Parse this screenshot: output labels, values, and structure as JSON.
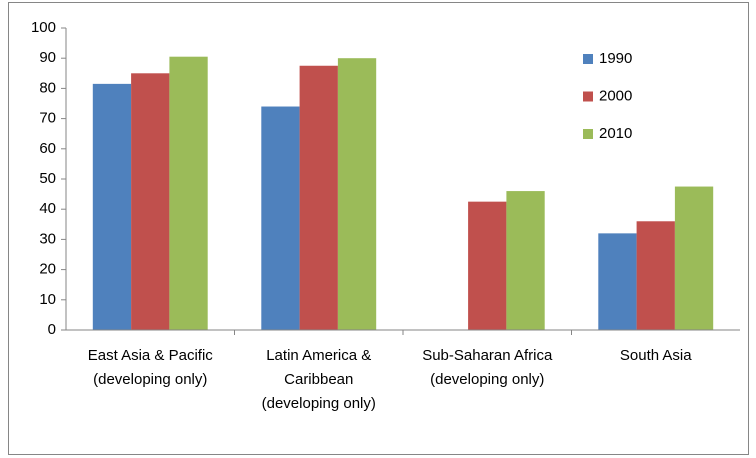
{
  "chart_data": {
    "type": "bar",
    "categories": [
      [
        "East Asia & Pacific",
        "(developing only)"
      ],
      [
        "Latin America &",
        "Caribbean",
        "(developing only)"
      ],
      [
        "Sub-Saharan Africa",
        "(developing only)"
      ],
      [
        "South Asia"
      ]
    ],
    "series": [
      {
        "name": "1990",
        "color": "#4f81bd",
        "values": [
          81.5,
          74,
          null,
          32
        ]
      },
      {
        "name": "2000",
        "color": "#c0504d",
        "values": [
          85,
          87.5,
          42.5,
          36
        ]
      },
      {
        "name": "2010",
        "color": "#9bbb59",
        "values": [
          90.5,
          90,
          46,
          47.5
        ]
      }
    ],
    "ylim": [
      0,
      100
    ],
    "yticks": [
      0,
      10,
      20,
      30,
      40,
      50,
      60,
      70,
      80,
      90,
      100
    ],
    "grid": false,
    "legend": "top-right"
  }
}
